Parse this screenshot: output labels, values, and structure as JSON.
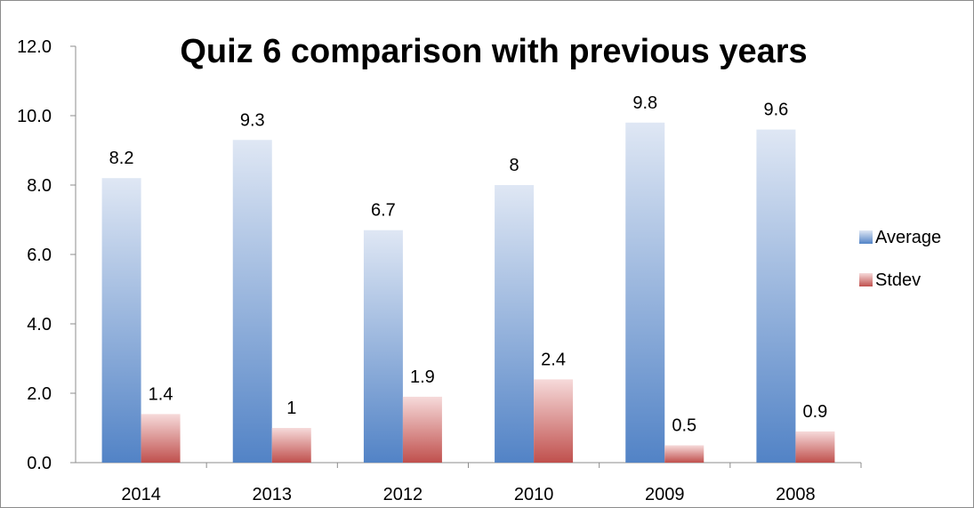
{
  "chart_data": {
    "type": "bar",
    "title": "Quiz 6 comparison with previous years",
    "categories": [
      "2014",
      "2013",
      "2012",
      "2010",
      "2009",
      "2008"
    ],
    "series": [
      {
        "name": "Average",
        "values": [
          8.2,
          9.3,
          6.7,
          8,
          9.8,
          9.6
        ],
        "labels": [
          "8.2",
          "9.3",
          "6.7",
          "8",
          "9.8",
          "9.6"
        ]
      },
      {
        "name": "Stdev",
        "values": [
          1.4,
          1,
          1.9,
          2.4,
          0.5,
          0.9
        ],
        "labels": [
          "1.4",
          "1",
          "1.9",
          "2.4",
          "0.5",
          "0.9"
        ]
      }
    ],
    "yticks": [
      "0.0",
      "2.0",
      "4.0",
      "6.0",
      "8.0",
      "10.0",
      "12.0"
    ],
    "ylim": [
      0,
      12
    ],
    "grid": false,
    "legend_position": "right",
    "colors": {
      "average_top": "#dfe7f4",
      "average_bottom": "#5283c6",
      "stdev_top": "#f6dada",
      "stdev_bottom": "#c0504d"
    }
  }
}
